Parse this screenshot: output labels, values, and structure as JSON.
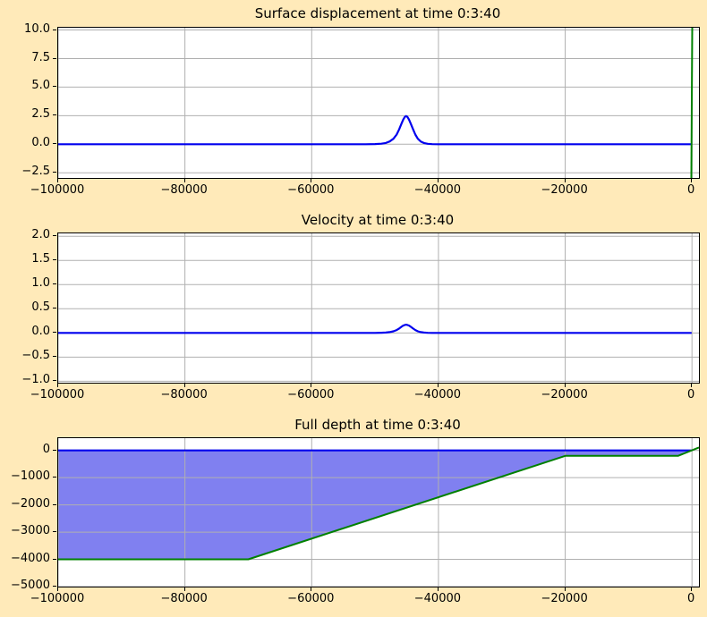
{
  "figure": {
    "background_color": "#ffeab9",
    "axes_background": "#ffffff",
    "grid_color": "#b0b0b0",
    "spine_color": "#000000",
    "surface_line_color": "#0000ee",
    "topo_line_color": "#008000",
    "water_fill_color": "#8080f0"
  },
  "chart_data": [
    {
      "name": "surface-displacement",
      "type": "line",
      "title": "Surface displacement at time 0:3:40",
      "xlim": [
        -100000,
        1100
      ],
      "ylim": [
        -2.95,
        10.2
      ],
      "grid": true,
      "xticks": [
        {
          "v": -100000,
          "label": "−100000"
        },
        {
          "v": -80000,
          "label": "−80000"
        },
        {
          "v": -60000,
          "label": "−60000"
        },
        {
          "v": -40000,
          "label": "−40000"
        },
        {
          "v": -20000,
          "label": "−20000"
        },
        {
          "v": 0,
          "label": "0"
        }
      ],
      "yticks": [
        {
          "v": 10.0,
          "label": "10.0"
        },
        {
          "v": 7.5,
          "label": "7.5"
        },
        {
          "v": 5.0,
          "label": "5.0"
        },
        {
          "v": 2.5,
          "label": "2.5"
        },
        {
          "v": 0.0,
          "label": "0.0"
        },
        {
          "v": -2.5,
          "label": "−2.5"
        }
      ],
      "series": [
        {
          "name": "sea-surface",
          "type": "line",
          "color": "#0000ee",
          "width": 2.2,
          "points": [
            [
              -100000,
              0
            ],
            [
              -54000,
              0
            ],
            [
              -51500,
              0.004
            ],
            [
              -50000,
              0.015
            ],
            [
              -49000,
              0.05
            ],
            [
              -48300,
              0.11
            ],
            [
              -47700,
              0.24
            ],
            [
              -47100,
              0.48
            ],
            [
              -46600,
              0.85
            ],
            [
              -46200,
              1.3
            ],
            [
              -45850,
              1.78
            ],
            [
              -45550,
              2.16
            ],
            [
              -45300,
              2.4
            ],
            [
              -45100,
              2.47
            ],
            [
              -44900,
              2.4
            ],
            [
              -44650,
              2.16
            ],
            [
              -44350,
              1.78
            ],
            [
              -44000,
              1.3
            ],
            [
              -43650,
              0.85
            ],
            [
              -43250,
              0.48
            ],
            [
              -42800,
              0.24
            ],
            [
              -42300,
              0.11
            ],
            [
              -41700,
              0.04
            ],
            [
              -41000,
              0.01
            ],
            [
              -40000,
              0
            ],
            [
              -60,
              0
            ]
          ]
        },
        {
          "name": "shore-topography",
          "type": "line",
          "color": "#008000",
          "width": 2,
          "points": [
            [
              -102,
              -3
            ],
            [
              38,
              10.2
            ]
          ]
        }
      ]
    },
    {
      "name": "velocity",
      "type": "line",
      "title": "Velocity at time 0:3:40",
      "xlim": [
        -100000,
        1100
      ],
      "ylim": [
        -1.03,
        2.06
      ],
      "grid": true,
      "xticks": [
        {
          "v": -100000,
          "label": "−100000"
        },
        {
          "v": -80000,
          "label": "−80000"
        },
        {
          "v": -60000,
          "label": "−60000"
        },
        {
          "v": -40000,
          "label": "−40000"
        },
        {
          "v": -20000,
          "label": "−20000"
        },
        {
          "v": 0,
          "label": "0"
        }
      ],
      "yticks": [
        {
          "v": 2.0,
          "label": "2.0"
        },
        {
          "v": 1.5,
          "label": "1.5"
        },
        {
          "v": 1.0,
          "label": "1.0"
        },
        {
          "v": 0.5,
          "label": "0.5"
        },
        {
          "v": 0.0,
          "label": "0.0"
        },
        {
          "v": -0.5,
          "label": "−0.5"
        },
        {
          "v": -1.0,
          "label": "−1.0"
        }
      ],
      "series": [
        {
          "name": "velocity-line",
          "type": "line",
          "color": "#0000ee",
          "width": 2.2,
          "points": [
            [
              -100000,
              0
            ],
            [
              -54000,
              0
            ],
            [
              -51500,
              0
            ],
            [
              -50000,
              0.001
            ],
            [
              -49000,
              0.004
            ],
            [
              -48300,
              0.008
            ],
            [
              -47700,
              0.017
            ],
            [
              -47100,
              0.034
            ],
            [
              -46600,
              0.06
            ],
            [
              -46200,
              0.092
            ],
            [
              -45850,
              0.126
            ],
            [
              -45550,
              0.153
            ],
            [
              -45300,
              0.166
            ],
            [
              -45100,
              0.17
            ],
            [
              -44900,
              0.166
            ],
            [
              -44650,
              0.153
            ],
            [
              -44350,
              0.126
            ],
            [
              -44000,
              0.092
            ],
            [
              -43650,
              0.06
            ],
            [
              -43250,
              0.034
            ],
            [
              -42800,
              0.017
            ],
            [
              -42300,
              0.008
            ],
            [
              -41700,
              0.003
            ],
            [
              -41000,
              0.001
            ],
            [
              -40000,
              0
            ],
            [
              -60,
              0
            ]
          ]
        }
      ]
    },
    {
      "name": "full-depth",
      "type": "area",
      "title": "Full depth at time 0:3:40",
      "xlim": [
        -100000,
        1100
      ],
      "ylim": [
        -5000,
        450
      ],
      "grid": true,
      "xticks": [
        {
          "v": -100000,
          "label": "−100000"
        },
        {
          "v": -80000,
          "label": "−80000"
        },
        {
          "v": -60000,
          "label": "−60000"
        },
        {
          "v": -40000,
          "label": "−40000"
        },
        {
          "v": -20000,
          "label": "−20000"
        },
        {
          "v": 0,
          "label": "0"
        }
      ],
      "yticks": [
        {
          "v": 0,
          "label": "0"
        },
        {
          "v": -1000,
          "label": "−1000"
        },
        {
          "v": -2000,
          "label": "−2000"
        },
        {
          "v": -3000,
          "label": "−3000"
        },
        {
          "v": -4000,
          "label": "−4000"
        },
        {
          "v": -5000,
          "label": "−5000"
        }
      ],
      "series": [
        {
          "name": "water-fill",
          "type": "fill",
          "color": "#8080f0",
          "points": [
            [
              -100000,
              0
            ],
            [
              -70,
              0
            ],
            [
              -2200,
              -200
            ],
            [
              -20000,
              -200
            ],
            [
              -70000,
              -4000
            ],
            [
              -100000,
              -4000
            ]
          ]
        },
        {
          "name": "sea-surface",
          "type": "line",
          "color": "#0000ee",
          "width": 2.2,
          "points": [
            [
              -100000,
              0
            ],
            [
              -70,
              0
            ]
          ]
        },
        {
          "name": "bathymetry",
          "type": "line",
          "color": "#008000",
          "width": 2,
          "points": [
            [
              -100000,
              -4000
            ],
            [
              -70000,
              -4000
            ],
            [
              -20000,
              -200
            ],
            [
              -2200,
              -200
            ],
            [
              1100,
              110
            ]
          ]
        }
      ]
    }
  ]
}
